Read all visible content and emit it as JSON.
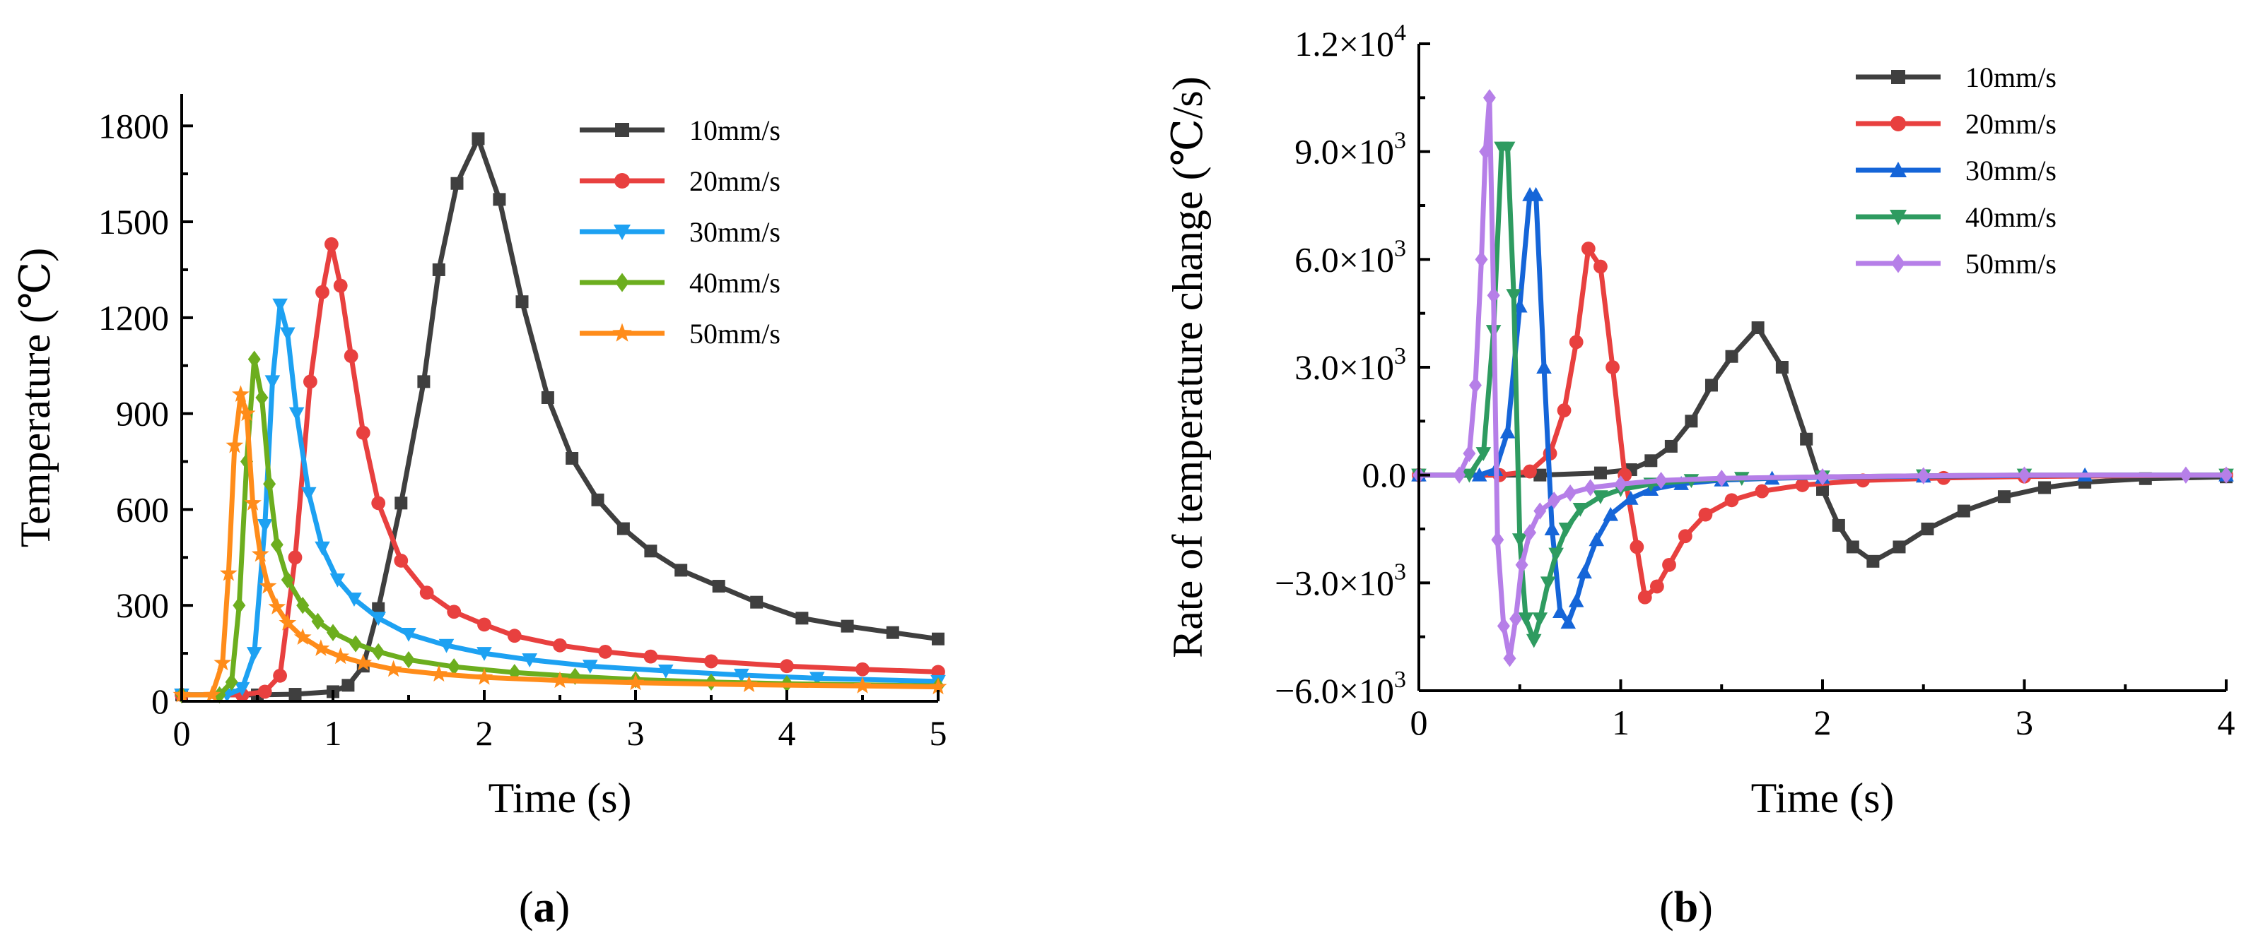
{
  "chart_data": [
    {
      "id": "a",
      "type": "line",
      "panel_label": "(a)",
      "title": "",
      "xlabel": "Time (s)",
      "ylabel": "Temperature (℃)",
      "xlim": [
        0,
        5
      ],
      "ylim": [
        0,
        1900
      ],
      "xticks": [
        0,
        1,
        2,
        3,
        4,
        5
      ],
      "xtick_labels": [
        "0",
        "1",
        "2",
        "3",
        "4",
        "5"
      ],
      "yticks": [
        0,
        300,
        600,
        900,
        1200,
        1500,
        1800
      ],
      "ytick_labels": [
        "0",
        "300",
        "600",
        "900",
        "1200",
        "1500",
        "1800"
      ],
      "grid": false,
      "legend_position": "top-right",
      "series": [
        {
          "name": "10mm/s",
          "color": "#3f3f3f",
          "marker": "square",
          "x": [
            0,
            0.5,
            0.75,
            1.0,
            1.1,
            1.2,
            1.3,
            1.45,
            1.6,
            1.7,
            1.82,
            1.96,
            2.1,
            2.25,
            2.42,
            2.58,
            2.75,
            2.92,
            3.1,
            3.3,
            3.55,
            3.8,
            4.1,
            4.4,
            4.7,
            5.0
          ],
          "values": [
            20,
            20,
            22,
            30,
            50,
            110,
            290,
            620,
            1000,
            1350,
            1620,
            1760,
            1570,
            1250,
            950,
            760,
            630,
            540,
            470,
            410,
            360,
            310,
            260,
            235,
            215,
            195
          ]
        },
        {
          "name": "20mm/s",
          "color": "#e8403f",
          "marker": "circle",
          "x": [
            0,
            0.4,
            0.55,
            0.65,
            0.75,
            0.85,
            0.93,
            0.99,
            1.05,
            1.12,
            1.2,
            1.3,
            1.45,
            1.62,
            1.8,
            2.0,
            2.2,
            2.5,
            2.8,
            3.1,
            3.5,
            4.0,
            4.5,
            5.0
          ],
          "values": [
            20,
            20,
            30,
            80,
            450,
            1000,
            1280,
            1430,
            1300,
            1080,
            840,
            620,
            440,
            340,
            280,
            240,
            205,
            175,
            155,
            140,
            125,
            110,
            100,
            92
          ]
        },
        {
          "name": "30mm/s",
          "color": "#1da1f2",
          "marker": "triangle-down",
          "x": [
            0,
            0.3,
            0.4,
            0.48,
            0.55,
            0.6,
            0.65,
            0.7,
            0.76,
            0.84,
            0.93,
            1.03,
            1.14,
            1.3,
            1.5,
            1.75,
            2.0,
            2.3,
            2.7,
            3.2,
            3.7,
            4.2,
            5.0
          ],
          "values": [
            20,
            20,
            40,
            150,
            550,
            1000,
            1240,
            1150,
            900,
            650,
            480,
            380,
            320,
            260,
            210,
            175,
            150,
            130,
            110,
            95,
            82,
            72,
            62
          ]
        },
        {
          "name": "40mm/s",
          "color": "#6cae1e",
          "marker": "diamond",
          "x": [
            0,
            0.25,
            0.33,
            0.38,
            0.43,
            0.48,
            0.53,
            0.58,
            0.63,
            0.7,
            0.8,
            0.9,
            1.0,
            1.15,
            1.3,
            1.5,
            1.8,
            2.2,
            2.6,
            3.0,
            3.5,
            4.0,
            5.0
          ],
          "values": [
            20,
            20,
            60,
            300,
            750,
            1070,
            950,
            680,
            490,
            380,
            300,
            250,
            215,
            180,
            155,
            130,
            108,
            90,
            78,
            68,
            60,
            55,
            48
          ]
        },
        {
          "name": "50mm/s",
          "color": "#ff8c1a",
          "marker": "star",
          "x": [
            0,
            0.2,
            0.27,
            0.31,
            0.35,
            0.39,
            0.43,
            0.47,
            0.52,
            0.57,
            0.63,
            0.7,
            0.8,
            0.92,
            1.05,
            1.2,
            1.4,
            1.7,
            2.0,
            2.5,
            3.0,
            3.75,
            4.5,
            5.0
          ],
          "values": [
            20,
            20,
            120,
            400,
            800,
            960,
            900,
            620,
            460,
            360,
            295,
            245,
            200,
            165,
            140,
            120,
            100,
            85,
            75,
            65,
            58,
            52,
            48,
            45
          ]
        }
      ]
    },
    {
      "id": "b",
      "type": "line",
      "panel_label": "(b)",
      "title": "",
      "xlabel": "Time (s)",
      "ylabel": "Rate of temperature change (℃/s)",
      "xlim": [
        0,
        4
      ],
      "ylim": [
        -6000,
        12000
      ],
      "xticks": [
        0,
        1,
        2,
        3,
        4
      ],
      "xtick_labels": [
        "0",
        "1",
        "2",
        "3",
        "4"
      ],
      "yticks": [
        -6000,
        -3000,
        0,
        3000,
        6000,
        9000,
        12000
      ],
      "ytick_mantissa": [
        "−6.0×10",
        "−3.0×10",
        "0.0",
        "3.0×10",
        "6.0×10",
        "9.0×10",
        "1.2×10"
      ],
      "ytick_exponent": [
        "3",
        "3",
        "",
        "3",
        "3",
        "3",
        "4"
      ],
      "grid": false,
      "legend_position": "top-right",
      "series": [
        {
          "name": "10mm/s",
          "color": "#3f3f3f",
          "marker": "square",
          "x": [
            0,
            0.6,
            0.9,
            1.05,
            1.15,
            1.25,
            1.35,
            1.45,
            1.55,
            1.68,
            1.8,
            1.92,
            2.0,
            2.08,
            2.15,
            2.25,
            2.38,
            2.52,
            2.7,
            2.9,
            3.1,
            3.3,
            3.6,
            4.0
          ],
          "values": [
            0,
            0,
            60,
            150,
            400,
            800,
            1500,
            2500,
            3300,
            4100,
            3000,
            1000,
            -400,
            -1400,
            -2000,
            -2400,
            -2000,
            -1500,
            -1000,
            -600,
            -350,
            -200,
            -100,
            -50
          ]
        },
        {
          "name": "20mm/s",
          "color": "#e8403f",
          "marker": "circle",
          "x": [
            0,
            0.4,
            0.55,
            0.65,
            0.72,
            0.78,
            0.84,
            0.9,
            0.96,
            1.02,
            1.08,
            1.12,
            1.18,
            1.24,
            1.32,
            1.42,
            1.55,
            1.7,
            1.9,
            2.2,
            2.6,
            3.0,
            4.0
          ],
          "values": [
            0,
            0,
            100,
            600,
            1800,
            3700,
            6300,
            5800,
            3000,
            0,
            -2000,
            -3400,
            -3100,
            -2500,
            -1700,
            -1100,
            -700,
            -450,
            -280,
            -150,
            -80,
            -40,
            0
          ]
        },
        {
          "name": "30mm/s",
          "color": "#1565d8",
          "marker": "triangle-up",
          "x": [
            0,
            0.3,
            0.38,
            0.44,
            0.5,
            0.55,
            0.58,
            0.62,
            0.66,
            0.7,
            0.74,
            0.78,
            0.82,
            0.88,
            0.95,
            1.05,
            1.15,
            1.3,
            1.5,
            1.75,
            2.0,
            2.5,
            3.3,
            4.0
          ],
          "values": [
            0,
            0,
            150,
            1200,
            4700,
            7800,
            7800,
            3000,
            -1500,
            -3800,
            -4100,
            -3500,
            -2700,
            -1800,
            -1100,
            -650,
            -400,
            -240,
            -140,
            -90,
            -60,
            -30,
            0,
            0
          ]
        },
        {
          "name": "40mm/s",
          "color": "#2e9b60",
          "marker": "triangle-down",
          "x": [
            0,
            0.25,
            0.32,
            0.37,
            0.41,
            0.44,
            0.47,
            0.5,
            0.53,
            0.57,
            0.6,
            0.64,
            0.68,
            0.73,
            0.8,
            0.9,
            1.0,
            1.15,
            1.35,
            1.6,
            2.0,
            2.5,
            3.0,
            4.0
          ],
          "values": [
            0,
            0,
            600,
            4000,
            9100,
            9100,
            5000,
            -1800,
            -4000,
            -4600,
            -4000,
            -3000,
            -2200,
            -1500,
            -950,
            -600,
            -400,
            -250,
            -150,
            -90,
            -50,
            -20,
            0,
            0
          ]
        },
        {
          "name": "50mm/s",
          "color": "#b67fe8",
          "marker": "diamond",
          "x": [
            0,
            0.2,
            0.25,
            0.28,
            0.31,
            0.33,
            0.35,
            0.37,
            0.39,
            0.42,
            0.45,
            0.48,
            0.51,
            0.55,
            0.6,
            0.67,
            0.75,
            0.85,
            1.0,
            1.2,
            1.5,
            2.0,
            2.5,
            3.0,
            3.8,
            4.0
          ],
          "values": [
            0,
            0,
            600,
            2500,
            6000,
            9000,
            10500,
            5000,
            -1800,
            -4200,
            -5100,
            -4000,
            -2500,
            -1600,
            -1000,
            -700,
            -500,
            -350,
            -250,
            -150,
            -90,
            -50,
            -20,
            0,
            0,
            0
          ]
        }
      ]
    }
  ]
}
